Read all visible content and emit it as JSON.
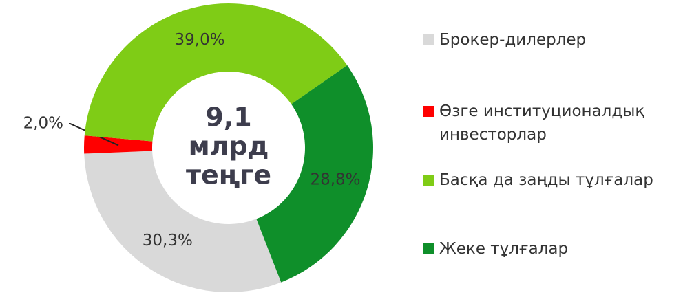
{
  "chart_data": {
    "type": "donut",
    "center_label": [
      "9,1",
      "млрд",
      "теңге"
    ],
    "categories": [
      "Брокер-дилерлер",
      "Өзге институционалдық инвесторлар",
      "Басқа да заңды тұлғалар",
      "Жеке тұлғалар"
    ],
    "values": [
      30.3,
      2.0,
      39.0,
      28.8
    ],
    "value_labels": [
      "30,3%",
      "2,0%",
      "39,0%",
      "28,8%"
    ],
    "colors": [
      "#d9d9d9",
      "#ff0000",
      "#7fcc16",
      "#0f8f2a"
    ]
  }
}
